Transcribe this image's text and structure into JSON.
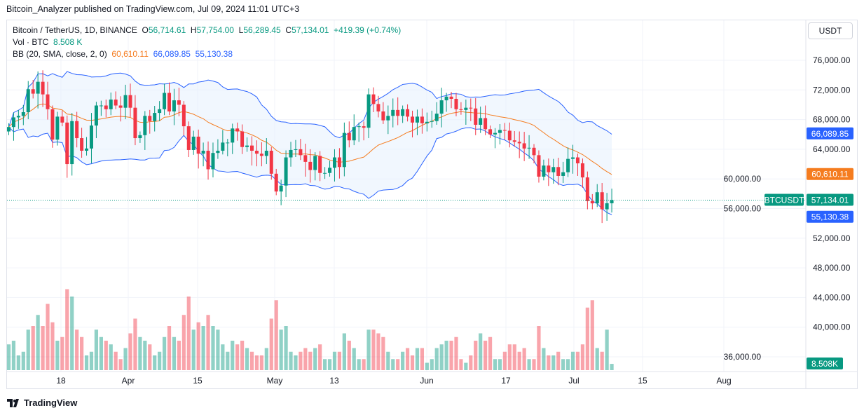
{
  "publisher_line": "Bitcoin_Analyzer published on TradingView.com, Jul 09, 2024 11:01 UTC+3",
  "legend": {
    "symbol": "Bitcoin / TetherUS, 1D, BINANCE",
    "open_label": "O",
    "open": "56,714.61",
    "high_label": "H",
    "high": "57,754.00",
    "low_label": "L",
    "low": "56,289.45",
    "close_label": "C",
    "close": "57,134.01",
    "change": "+419.39 (+0.74%)",
    "vol_label": "Vol · BTC",
    "vol": "8.508 K",
    "bb_label": "BB (20, SMA, close, 2, 0)",
    "bb_basis": "60,610.11",
    "bb_upper": "66,089.85",
    "bb_lower": "55,130.38"
  },
  "currency_button": "USDT",
  "badges": {
    "symbol": "BTCUSDT",
    "last": "57,134.01",
    "upper": "66,089.85",
    "basis": "60,610.11",
    "lower": "55,130.38",
    "volume": "8.508K"
  },
  "colors": {
    "up": "#089981",
    "down": "#f23645",
    "bb_basis": "#f57c1f",
    "bb_band": "#2962ff",
    "bb_fill": "#e3effd"
  },
  "logo_text": "TradingView",
  "chart_data": {
    "type": "candlestick",
    "start_date": "2024-03-07",
    "end_date": "2024-07-09",
    "closes": [
      67.0,
      68.3,
      68.5,
      69.0,
      72.1,
      71.5,
      73.1,
      71.4,
      69.4,
      65.3,
      68.4,
      67.6,
      62.0,
      67.8,
      65.5,
      63.8,
      64.1,
      67.2,
      69.9,
      69.9,
      69.4,
      70.7,
      69.9,
      69.6,
      71.3,
      69.6,
      65.5,
      65.9,
      68.5,
      67.8,
      68.9,
      69.4,
      71.6,
      69.1,
      70.6,
      70.0,
      67.1,
      63.9,
      65.7,
      63.4,
      63.8,
      61.3,
      63.5,
      63.8,
      64.9,
      64.9,
      66.8,
      66.4,
      64.3,
      64.5,
      63.8,
      63.4,
      63.1,
      63.8,
      60.7,
      58.3,
      59.1,
      62.9,
      63.9,
      64.0,
      63.2,
      62.3,
      61.2,
      63.1,
      60.8,
      60.8,
      61.5,
      62.9,
      61.6,
      66.2,
      65.2,
      67.0,
      67.1,
      66.9,
      71.4,
      70.1,
      69.1,
      67.9,
      68.5,
      69.3,
      68.5,
      69.4,
      68.4,
      67.6,
      68.4,
      67.5,
      67.7,
      67.8,
      68.8,
      70.6,
      71.1,
      70.8,
      69.4,
      69.3,
      69.6,
      69.5,
      67.3,
      68.2,
      66.7,
      66.0,
      66.2,
      66.6,
      66.5,
      65.2,
      65.0,
      64.8,
      64.1,
      64.2,
      63.2,
      60.3,
      61.8,
      60.9,
      61.6,
      60.4,
      60.9,
      62.7,
      62.9,
      62.1,
      60.2,
      57.0,
      56.7,
      58.2,
      55.9,
      56.714,
      57.134
    ],
    "close_unit": "thousand USDT",
    "volumes_k": [
      35,
      40,
      20,
      25,
      55,
      60,
      75,
      60,
      90,
      65,
      40,
      45,
      110,
      100,
      55,
      45,
      20,
      25,
      55,
      45,
      40,
      35,
      25,
      15,
      30,
      50,
      70,
      45,
      40,
      35,
      20,
      25,
      45,
      60,
      45,
      40,
      75,
      100,
      55,
      65,
      60,
      75,
      60,
      55,
      35,
      25,
      40,
      35,
      40,
      30,
      25,
      20,
      20,
      30,
      70,
      95,
      55,
      60,
      25,
      20,
      25,
      30,
      25,
      30,
      35,
      15,
      15,
      25,
      25,
      50,
      40,
      30,
      15,
      15,
      55,
      55,
      50,
      45,
      25,
      15,
      15,
      25,
      30,
      20,
      30,
      30,
      10,
      15,
      30,
      35,
      40,
      40,
      45,
      15,
      10,
      20,
      40,
      50,
      40,
      45,
      15,
      15,
      25,
      35,
      35,
      25,
      30,
      15,
      15,
      60,
      30,
      20,
      20,
      25,
      15,
      15,
      25,
      25,
      35,
      85,
      95,
      30,
      25,
      55,
      8.508
    ],
    "y_ticks": [
      "76,000.00",
      "72,000.00",
      "68,000.00",
      "64,000.00",
      "60,000.00",
      "56,000.00",
      "52,000.00",
      "48,000.00",
      "44,000.00",
      "40,000.00",
      "36,000.00"
    ],
    "x_ticks": [
      "18",
      "Apr",
      "15",
      "May",
      "13",
      "Jun",
      "17",
      "Jul",
      "15",
      "Aug"
    ],
    "ylim": [
      34000,
      80000
    ],
    "indicator": "Bollinger Bands (20, 2)"
  }
}
